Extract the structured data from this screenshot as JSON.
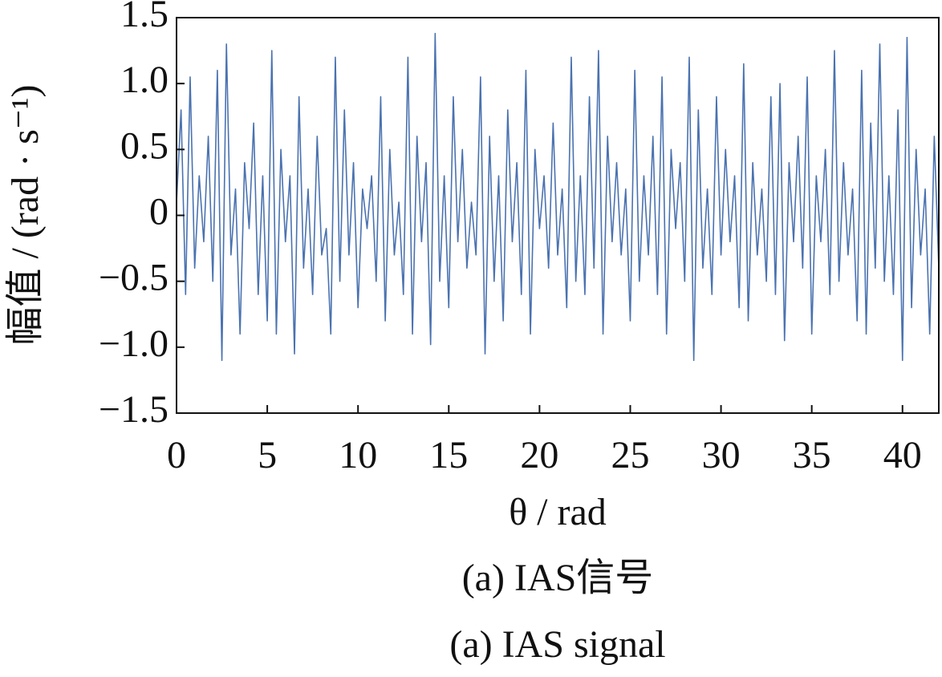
{
  "chart_data": {
    "type": "line",
    "xlabel": "θ / rad",
    "ylabel": "幅值 / (rad · s⁻¹)",
    "captions": [
      "(a)  IAS信号",
      "(a)  IAS signal"
    ],
    "xlim": [
      0,
      42
    ],
    "xticks": [
      0,
      5,
      10,
      15,
      20,
      25,
      30,
      35,
      40
    ],
    "ylim": [
      -1.5,
      1.5
    ],
    "yticks": [
      {
        "value": -1.5,
        "label": "−1.5"
      },
      {
        "value": -1.0,
        "label": "−1.0"
      },
      {
        "value": -0.5,
        "label": "−0.5"
      },
      0,
      0.5,
      {
        "value": 1.0,
        "label": "1.0"
      },
      1.5
    ],
    "color": "#4a72b0",
    "x": [
      0,
      0.25,
      0.5,
      0.75,
      1,
      1.25,
      1.5,
      1.75,
      2,
      2.25,
      2.5,
      2.75,
      3,
      3.25,
      3.5,
      3.75,
      4,
      4.25,
      4.5,
      4.75,
      5,
      5.25,
      5.5,
      5.75,
      6,
      6.25,
      6.5,
      6.75,
      7,
      7.25,
      7.5,
      7.75,
      8,
      8.25,
      8.5,
      8.75,
      9,
      9.25,
      9.5,
      9.75,
      10,
      10.25,
      10.5,
      10.75,
      11,
      11.25,
      11.5,
      11.75,
      12,
      12.25,
      12.5,
      12.75,
      13,
      13.25,
      13.5,
      13.75,
      14,
      14.25,
      14.5,
      14.75,
      15,
      15.25,
      15.5,
      15.75,
      16,
      16.25,
      16.5,
      16.75,
      17,
      17.25,
      17.5,
      17.75,
      18,
      18.25,
      18.5,
      18.75,
      19,
      19.25,
      19.5,
      19.75,
      20,
      20.25,
      20.5,
      20.75,
      21,
      21.25,
      21.5,
      21.75,
      22,
      22.25,
      22.5,
      22.75,
      23,
      23.25,
      23.5,
      23.75,
      24,
      24.25,
      24.5,
      24.75,
      25,
      25.25,
      25.5,
      25.75,
      26,
      26.25,
      26.5,
      26.75,
      27,
      27.25,
      27.5,
      27.75,
      28,
      28.25,
      28.5,
      28.75,
      29,
      29.25,
      29.5,
      29.75,
      30,
      30.25,
      30.5,
      30.75,
      31,
      31.25,
      31.5,
      31.75,
      32,
      32.25,
      32.5,
      32.75,
      33,
      33.25,
      33.5,
      33.75,
      34,
      34.25,
      34.5,
      34.75,
      35,
      35.25,
      35.5,
      35.75,
      36,
      36.25,
      36.5,
      36.75,
      37,
      37.25,
      37.5,
      37.75,
      38,
      38.25,
      38.5,
      38.75,
      39,
      39.25,
      39.5,
      39.75,
      40,
      40.25,
      40.5,
      40.75,
      41,
      41.25,
      41.5,
      41.75,
      42
    ],
    "values": [
      0.1,
      0.8,
      -0.6,
      1.05,
      -0.4,
      0.3,
      -0.2,
      0.6,
      -0.5,
      1.1,
      -1.1,
      1.3,
      -0.3,
      0.2,
      -0.9,
      0.4,
      -0.1,
      0.7,
      -0.6,
      0.3,
      -0.8,
      1.25,
      -0.9,
      0.5,
      -0.2,
      0.3,
      -1.05,
      0.9,
      -0.4,
      0.2,
      -0.6,
      0.6,
      -0.3,
      -0.1,
      -0.9,
      1.2,
      -0.5,
      0.8,
      -0.3,
      0.4,
      -0.7,
      0.2,
      -0.1,
      0.3,
      -0.5,
      0.9,
      -0.8,
      0.5,
      -0.3,
      0.1,
      -0.6,
      1.2,
      -0.9,
      0.6,
      -0.2,
      0.4,
      -0.98,
      1.38,
      -0.5,
      0.3,
      -0.7,
      0.9,
      -0.2,
      0.5,
      -0.4,
      0.1,
      -0.3,
      1.05,
      -1.05,
      0.6,
      -0.5,
      0.3,
      -0.8,
      0.8,
      -0.2,
      0.4,
      -0.6,
      1.1,
      -0.9,
      0.5,
      -0.1,
      0.3,
      -0.4,
      0.7,
      -0.3,
      0.2,
      -0.7,
      1.2,
      -0.5,
      0.3,
      -0.6,
      0.9,
      -0.4,
      1.25,
      -0.9,
      0.6,
      -0.2,
      0.4,
      -0.3,
      0.2,
      -0.8,
      1.1,
      -0.5,
      0.3,
      -0.3,
      0.6,
      -0.6,
      1.05,
      -0.9,
      0.5,
      -0.1,
      0.4,
      -0.5,
      1.2,
      -1.1,
      0.8,
      -0.4,
      0.2,
      -0.6,
      0.9,
      -0.3,
      0.5,
      -0.2,
      0.3,
      -0.7,
      1.15,
      -0.8,
      0.4,
      -0.3,
      0.2,
      -0.5,
      0.9,
      -0.6,
      1.0,
      -0.95,
      0.4,
      -0.2,
      0.6,
      -0.4,
      1.05,
      -0.9,
      0.3,
      -0.2,
      0.5,
      -0.6,
      1.25,
      -0.5,
      0.4,
      -0.3,
      0.2,
      -0.8,
      1.1,
      -0.9,
      0.7,
      -0.4,
      1.3,
      -0.5,
      0.3,
      -0.6,
      0.8,
      -1.1,
      1.35,
      -0.7,
      0.5,
      -0.3,
      0.2,
      -0.9,
      0.6,
      -0.4
    ]
  }
}
